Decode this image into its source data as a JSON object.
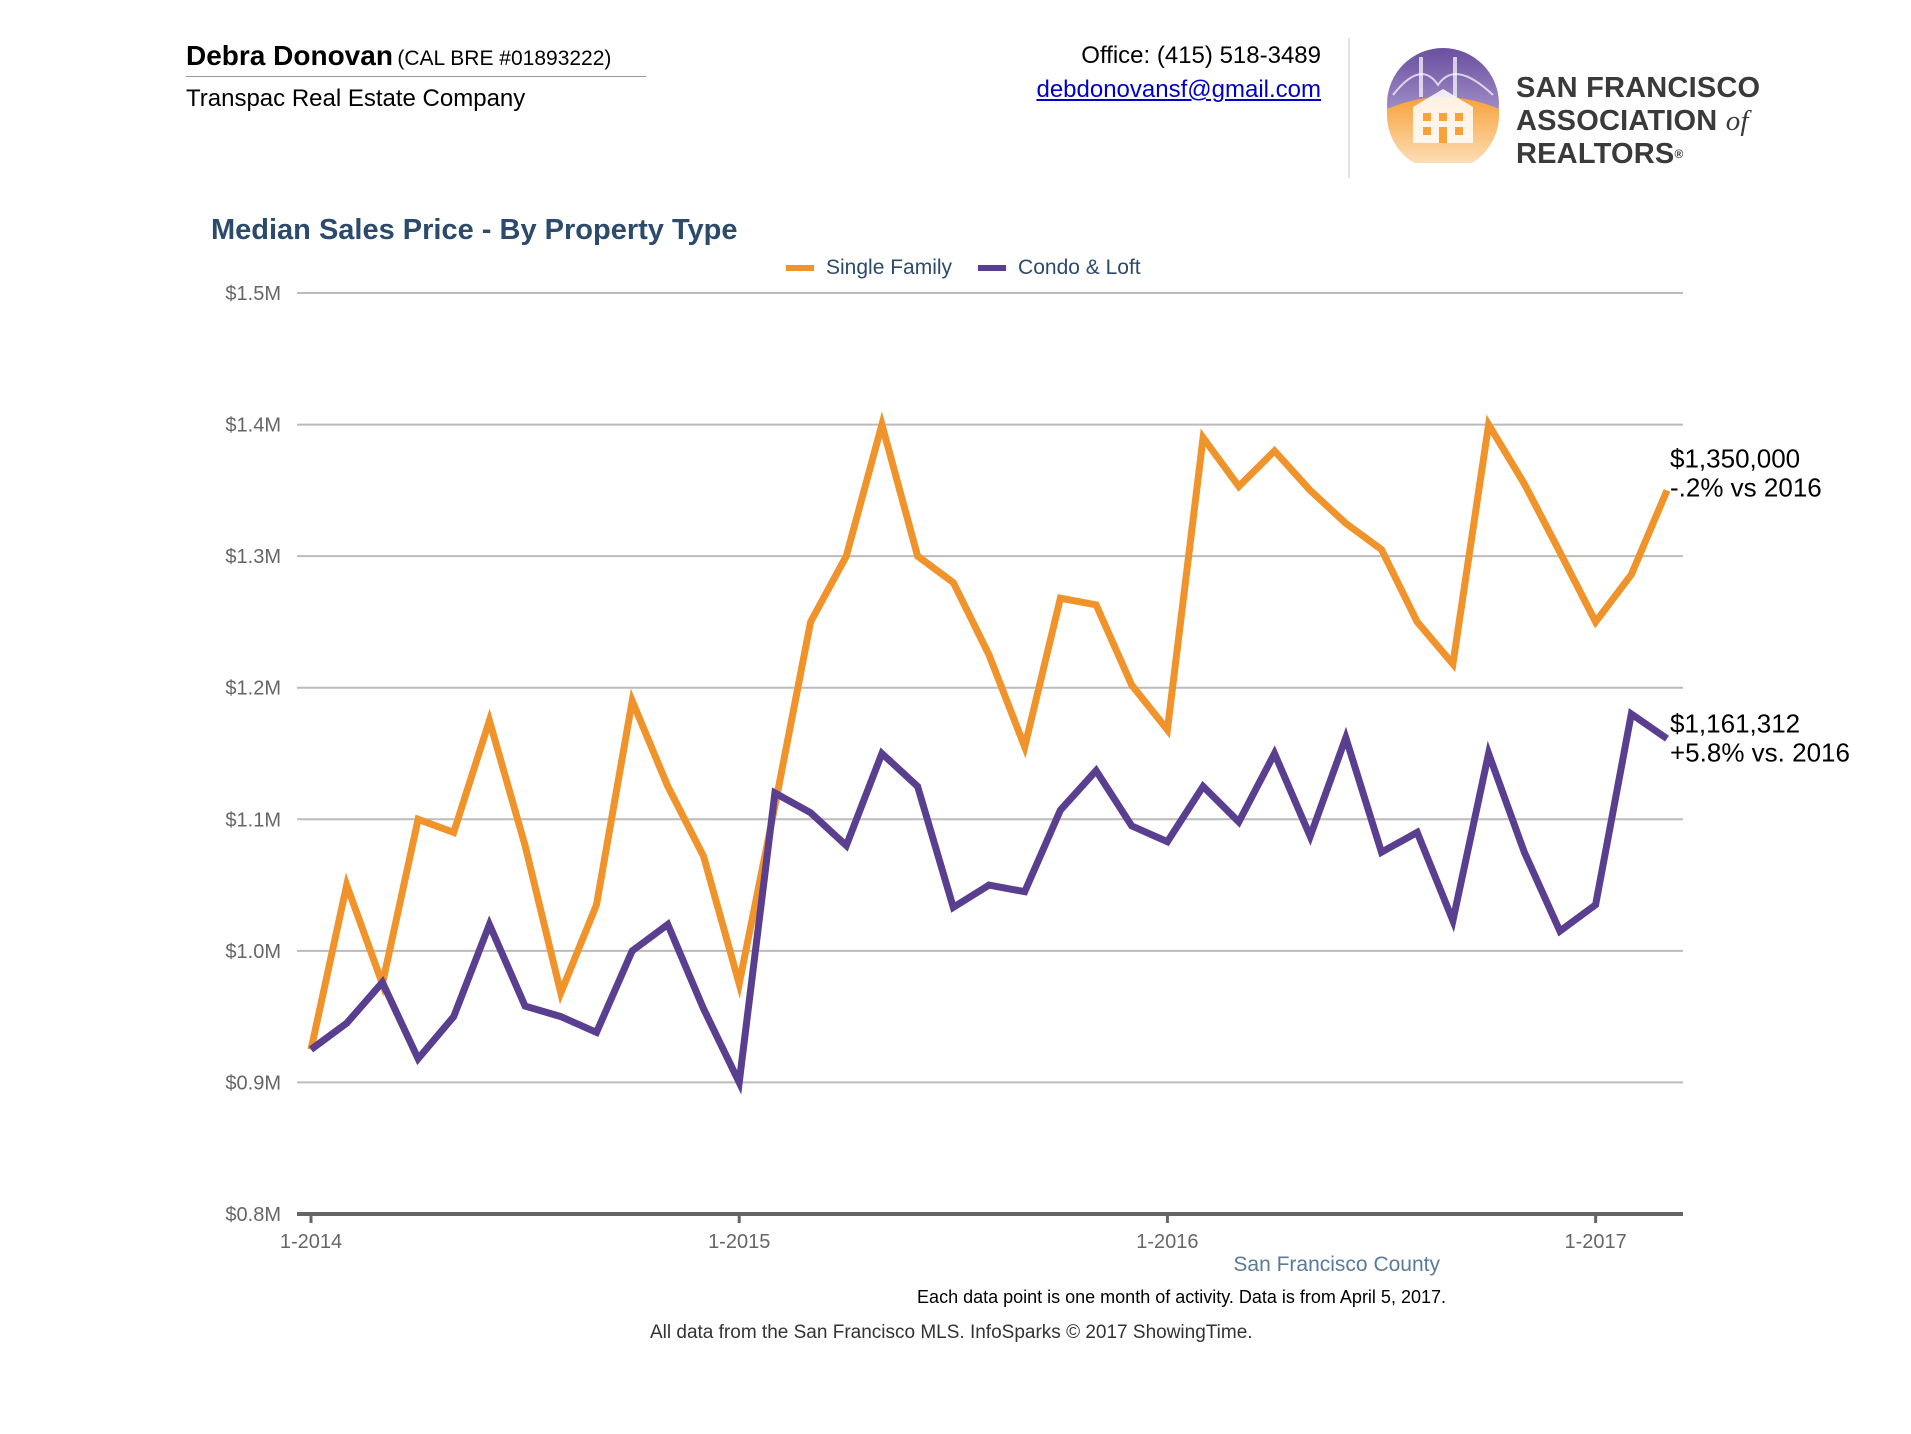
{
  "header": {
    "agent_name": "Debra Donovan",
    "agent_license": "(CAL BRE #01893222)",
    "company": "Transpac Real Estate Company",
    "office": "Office: (415) 518-3489",
    "email": "debdonovansf@gmail.com",
    "logo_line1": "SAN FRANCISCO",
    "logo_line2_a": "ASSOCIATION ",
    "logo_line2_of": "of",
    "logo_line2_b": " REALTORS",
    "logo_reg": "®"
  },
  "colors": {
    "single_family": "#F0932B",
    "condo_loft": "#5A3E8F",
    "title": "#2C4A6B",
    "grid": "#BBBBBB",
    "axis": "#666666"
  },
  "chart_data": {
    "type": "line",
    "title": "Median Sales Price - By Property Type",
    "x": [
      "1-2014",
      "2-2014",
      "3-2014",
      "4-2014",
      "5-2014",
      "6-2014",
      "7-2014",
      "8-2014",
      "9-2014",
      "10-2014",
      "11-2014",
      "12-2014",
      "1-2015",
      "2-2015",
      "3-2015",
      "4-2015",
      "5-2015",
      "6-2015",
      "7-2015",
      "8-2015",
      "9-2015",
      "10-2015",
      "11-2015",
      "12-2015",
      "1-2016",
      "2-2016",
      "3-2016",
      "4-2016",
      "5-2016",
      "6-2016",
      "7-2016",
      "8-2016",
      "9-2016",
      "10-2016",
      "11-2016",
      "12-2016",
      "1-2017",
      "2-2017",
      "3-2017"
    ],
    "x_ticks": [
      "1-2014",
      "1-2015",
      "1-2016",
      "1-2017"
    ],
    "y_ticks": [
      "$0.8M",
      "$0.9M",
      "$1.0M",
      "$1.1M",
      "$1.2M",
      "$1.3M",
      "$1.4M",
      "$1.5M"
    ],
    "ylim": [
      800000,
      1500000
    ],
    "grid": true,
    "legend_position": "top-center",
    "series": [
      {
        "name": "Single Family",
        "values": [
          925000,
          1050000,
          975000,
          1100000,
          1090000,
          1175000,
          1080000,
          968000,
          1035000,
          1190000,
          1125000,
          1072000,
          975000,
          1110000,
          1250000,
          1300000,
          1400000,
          1300000,
          1280000,
          1225000,
          1155000,
          1268000,
          1263000,
          1202000,
          1168000,
          1390000,
          1353000,
          1380000,
          1350000,
          1325000,
          1305000,
          1250000,
          1218000,
          1400000,
          1355000,
          1303000,
          1250000,
          1286000,
          1350000
        ],
        "end_label": "$1,350,000",
        "end_change": "-.2% vs 2016"
      },
      {
        "name": "Condo & Loft",
        "values": [
          925000,
          945000,
          976000,
          918000,
          950000,
          1020000,
          958000,
          950000,
          938000,
          1000000,
          1020000,
          956000,
          900000,
          1120000,
          1105000,
          1080000,
          1150000,
          1125000,
          1033000,
          1050000,
          1045000,
          1107000,
          1137000,
          1095000,
          1083000,
          1125000,
          1098000,
          1150000,
          1087000,
          1162000,
          1075000,
          1090000,
          1023000,
          1150000,
          1075000,
          1015000,
          1035000,
          1180000,
          1161312
        ],
        "end_label": "$1,161,312",
        "end_change": "+5.8% vs. 2016"
      }
    ]
  },
  "footer": {
    "county": "San Francisco County",
    "note": "Each data point is one month of activity. Data is from April 5, 2017.",
    "source": "All data from the San Francisco MLS. InfoSparks © 2017 ShowingTime."
  }
}
